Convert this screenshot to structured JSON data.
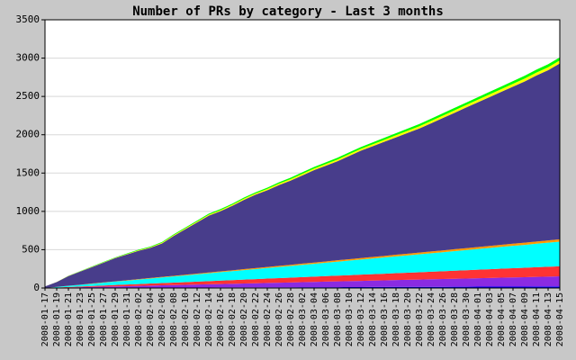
{
  "chart_data": {
    "type": "stacked-area",
    "title": "Number of PRs by category - Last 3 months",
    "categories": [
      "2008-01-17",
      "2008-01-19",
      "2008-01-21",
      "2008-01-23",
      "2008-01-25",
      "2008-01-27",
      "2008-01-29",
      "2008-01-31",
      "2008-02-02",
      "2008-02-04",
      "2008-02-06",
      "2008-02-08",
      "2008-02-10",
      "2008-02-12",
      "2008-02-14",
      "2008-02-16",
      "2008-02-18",
      "2008-02-20",
      "2008-02-22",
      "2008-02-24",
      "2008-02-26",
      "2008-02-28",
      "2008-03-02",
      "2008-03-04",
      "2008-03-06",
      "2008-03-08",
      "2008-03-10",
      "2008-03-12",
      "2008-03-14",
      "2008-03-16",
      "2008-03-18",
      "2008-03-20",
      "2008-03-22",
      "2008-03-24",
      "2008-03-26",
      "2008-03-28",
      "2008-03-30",
      "2008-04-01",
      "2008-04-03",
      "2008-04-05",
      "2008-04-07",
      "2008-04-09",
      "2008-04-11",
      "2008-04-13",
      "2008-04-15"
    ],
    "series": [
      {
        "color": "#0000ff",
        "values": [
          0,
          0,
          1,
          1,
          2,
          2,
          3,
          3,
          4,
          4,
          5,
          5,
          5,
          6,
          6,
          7,
          7,
          8,
          8,
          9,
          9,
          9,
          10,
          10,
          11,
          11,
          12,
          12,
          13,
          13,
          14,
          14,
          14,
          15,
          15,
          16,
          16,
          17,
          17,
          18,
          18,
          18,
          19,
          19,
          20
        ]
      },
      {
        "color": "#8a2be2",
        "values": [
          0,
          3,
          6,
          9,
          12,
          15,
          18,
          21,
          24,
          27,
          30,
          33,
          36,
          39,
          42,
          45,
          48,
          51,
          54,
          57,
          60,
          63,
          66,
          69,
          72,
          75,
          78,
          81,
          84,
          87,
          90,
          93,
          96,
          99,
          102,
          105,
          108,
          111,
          114,
          117,
          120,
          123,
          126,
          129,
          132
        ]
      },
      {
        "color": "#ff3333",
        "values": [
          0,
          3,
          6,
          9,
          12,
          15,
          18,
          21,
          24,
          27,
          30,
          33,
          36,
          39,
          42,
          45,
          48,
          51,
          54,
          57,
          60,
          63,
          66,
          69,
          72,
          75,
          78,
          81,
          84,
          87,
          90,
          93,
          96,
          99,
          102,
          105,
          108,
          111,
          114,
          117,
          120,
          123,
          126,
          129,
          132
        ]
      },
      {
        "color": "#00ffff",
        "values": [
          0,
          7,
          15,
          22,
          29,
          37,
          44,
          51,
          58,
          66,
          73,
          80,
          88,
          95,
          102,
          110,
          117,
          124,
          131,
          139,
          146,
          153,
          161,
          168,
          175,
          183,
          190,
          197,
          204,
          212,
          219,
          226,
          234,
          241,
          248,
          256,
          263,
          270,
          277,
          285,
          292,
          299,
          307,
          314,
          321
        ]
      },
      {
        "color": "#ff9900",
        "values": [
          0,
          1,
          1,
          2,
          3,
          4,
          4,
          5,
          6,
          6,
          7,
          8,
          8,
          9,
          10,
          11,
          11,
          12,
          13,
          13,
          14,
          15,
          15,
          16,
          17,
          18,
          18,
          19,
          20,
          20,
          21,
          22,
          22,
          23,
          24,
          25,
          25,
          26,
          27,
          27,
          28,
          29,
          29,
          30,
          31
        ]
      },
      {
        "color": "#483d8b",
        "values": [
          20,
          64,
          127,
          171,
          214,
          257,
          303,
          337,
          370,
          394,
          437,
          521,
          595,
          668,
          742,
          784,
          841,
          904,
          958,
          1001,
          1055,
          1099,
          1152,
          1206,
          1249,
          1292,
          1348,
          1402,
          1445,
          1489,
          1532,
          1576,
          1620,
          1673,
          1727,
          1779,
          1836,
          1889,
          1943,
          1996,
          2050,
          2104,
          2167,
          2221,
          2294
        ]
      },
      {
        "color": "#ffff00",
        "values": [
          0,
          1,
          2,
          3,
          4,
          5,
          5,
          6,
          7,
          8,
          9,
          10,
          11,
          12,
          13,
          14,
          14,
          15,
          16,
          17,
          18,
          19,
          20,
          21,
          22,
          23,
          23,
          24,
          25,
          26,
          27,
          28,
          29,
          30,
          31,
          32,
          32,
          33,
          34,
          35,
          36,
          37,
          38,
          39,
          40
        ]
      },
      {
        "color": "#00ff00",
        "values": [
          0,
          1,
          2,
          3,
          4,
          5,
          5,
          6,
          7,
          8,
          9,
          10,
          11,
          12,
          13,
          14,
          14,
          15,
          16,
          17,
          18,
          19,
          20,
          21,
          22,
          23,
          23,
          24,
          25,
          26,
          27,
          28,
          29,
          30,
          31,
          32,
          32,
          33,
          34,
          35,
          36,
          37,
          38,
          39,
          40
        ]
      }
    ],
    "ylim": [
      0,
      3500
    ],
    "yticks": [
      0,
      500,
      1000,
      1500,
      2000,
      2500,
      3000,
      3500
    ],
    "grid": true
  }
}
